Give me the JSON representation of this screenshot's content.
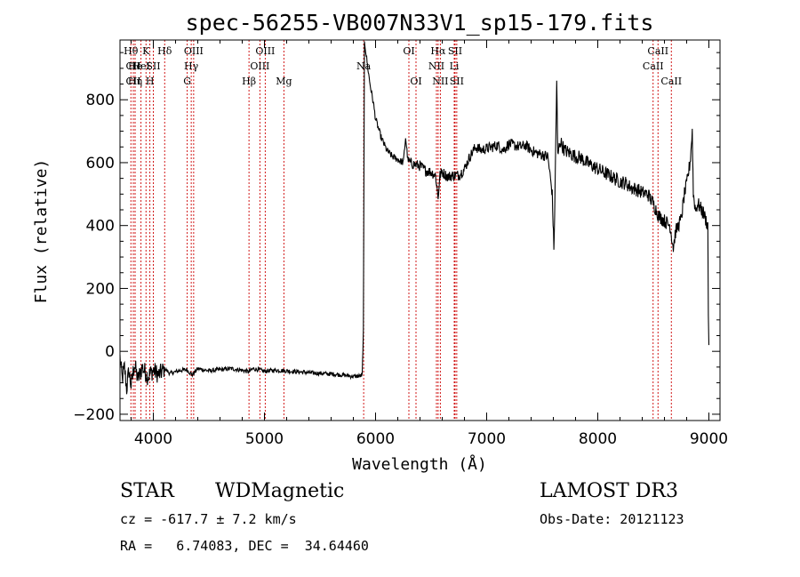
{
  "chart_data": {
    "type": "line",
    "title": "spec-56255-VB007N33V1_sp15-179.fits",
    "xlabel": "Wavelength (Å)",
    "ylabel": "Flux (relative)",
    "xlim": [
      3700,
      9100
    ],
    "ylim": [
      -220,
      990
    ],
    "xticks": [
      4000,
      5000,
      6000,
      7000,
      8000,
      9000
    ],
    "yticks": [
      -200,
      0,
      200,
      400,
      600,
      800
    ],
    "spectrum_anchors": [
      [
        3700,
        -20
      ],
      [
        3720,
        -90
      ],
      [
        3740,
        -50
      ],
      [
        3760,
        -120
      ],
      [
        3780,
        -60
      ],
      [
        3800,
        -110
      ],
      [
        3830,
        -40
      ],
      [
        3860,
        -90
      ],
      [
        3900,
        -50
      ],
      [
        3950,
        -80
      ],
      [
        4000,
        -60
      ],
      [
        4050,
        -75
      ],
      [
        4100,
        -55
      ],
      [
        4150,
        -70
      ],
      [
        4200,
        -65
      ],
      [
        4250,
        -60
      ],
      [
        4300,
        -58
      ],
      [
        4350,
        -75
      ],
      [
        4400,
        -55
      ],
      [
        4500,
        -62
      ],
      [
        4600,
        -58
      ],
      [
        4700,
        -55
      ],
      [
        4800,
        -60
      ],
      [
        4860,
        -65
      ],
      [
        4900,
        -55
      ],
      [
        5000,
        -63
      ],
      [
        5100,
        -60
      ],
      [
        5200,
        -62
      ],
      [
        5300,
        -65
      ],
      [
        5400,
        -68
      ],
      [
        5500,
        -70
      ],
      [
        5600,
        -72
      ],
      [
        5700,
        -75
      ],
      [
        5800,
        -80
      ],
      [
        5880,
        -78
      ],
      [
        5890,
        60
      ],
      [
        5900,
        990
      ],
      [
        5920,
        930
      ],
      [
        5950,
        850
      ],
      [
        5980,
        790
      ],
      [
        6000,
        740
      ],
      [
        6050,
        680
      ],
      [
        6100,
        640
      ],
      [
        6150,
        620
      ],
      [
        6200,
        610
      ],
      [
        6250,
        600
      ],
      [
        6270,
        680
      ],
      [
        6290,
        610
      ],
      [
        6310,
        600
      ],
      [
        6340,
        595
      ],
      [
        6400,
        590
      ],
      [
        6450,
        575
      ],
      [
        6500,
        570
      ],
      [
        6540,
        560
      ],
      [
        6563,
        490
      ],
      [
        6580,
        560
      ],
      [
        6600,
        570
      ],
      [
        6650,
        555
      ],
      [
        6700,
        560
      ],
      [
        6750,
        560
      ],
      [
        6800,
        580
      ],
      [
        6850,
        620
      ],
      [
        6900,
        650
      ],
      [
        6950,
        640
      ],
      [
        7000,
        645
      ],
      [
        7050,
        650
      ],
      [
        7100,
        655
      ],
      [
        7150,
        640
      ],
      [
        7200,
        660
      ],
      [
        7250,
        655
      ],
      [
        7300,
        650
      ],
      [
        7350,
        655
      ],
      [
        7400,
        640
      ],
      [
        7450,
        630
      ],
      [
        7500,
        625
      ],
      [
        7550,
        620
      ],
      [
        7590,
        500
      ],
      [
        7605,
        320
      ],
      [
        7615,
        500
      ],
      [
        7630,
        860
      ],
      [
        7640,
        620
      ],
      [
        7660,
        670
      ],
      [
        7700,
        640
      ],
      [
        7750,
        630
      ],
      [
        7800,
        620
      ],
      [
        7850,
        615
      ],
      [
        7900,
        600
      ],
      [
        7950,
        590
      ],
      [
        8000,
        580
      ],
      [
        8050,
        570
      ],
      [
        8100,
        560
      ],
      [
        8150,
        550
      ],
      [
        8200,
        540
      ],
      [
        8250,
        535
      ],
      [
        8300,
        520
      ],
      [
        8350,
        515
      ],
      [
        8400,
        505
      ],
      [
        8450,
        500
      ],
      [
        8500,
        470
      ],
      [
        8550,
        430
      ],
      [
        8600,
        415
      ],
      [
        8650,
        400
      ],
      [
        8680,
        330
      ],
      [
        8700,
        380
      ],
      [
        8750,
        420
      ],
      [
        8780,
        500
      ],
      [
        8800,
        530
      ],
      [
        8830,
        600
      ],
      [
        8850,
        700
      ],
      [
        8860,
        500
      ],
      [
        8880,
        450
      ],
      [
        8900,
        470
      ],
      [
        8950,
        440
      ],
      [
        8990,
        400
      ],
      [
        8995,
        120
      ],
      [
        9000,
        20
      ]
    ],
    "lines": [
      {
        "label": "Hθ",
        "x": 3798,
        "row": 1
      },
      {
        "label": "CII",
        "x": 3820,
        "row": 2
      },
      {
        "label": "CII",
        "x": 3820,
        "row": 3
      },
      {
        "label": "He",
        "x": 3836,
        "row": 2
      },
      {
        "label": "Hη",
        "x": 3836,
        "row": 3
      },
      {
        "label": "K",
        "x": 3934,
        "row": 1
      },
      {
        "label": "HeI",
        "x": 3889,
        "row": 2
      },
      {
        "label": "H",
        "x": 3969,
        "row": 3
      },
      {
        "label": "SII",
        "x": 4000,
        "row": 2
      },
      {
        "label": "Hδ",
        "x": 4102,
        "row": 1
      },
      {
        "label": "OIII",
        "x": 4363,
        "row": 1
      },
      {
        "label": "Hγ",
        "x": 4341,
        "row": 2
      },
      {
        "label": "G",
        "x": 4305,
        "row": 3
      },
      {
        "label": "Hβ",
        "x": 4861,
        "row": 3
      },
      {
        "label": "OIII",
        "x": 5007,
        "row": 1
      },
      {
        "label": "OIII",
        "x": 4959,
        "row": 2
      },
      {
        "label": "Mg",
        "x": 5175,
        "row": 3
      },
      {
        "label": "Na",
        "x": 5893,
        "row": 2
      },
      {
        "label": "OI",
        "x": 6300,
        "row": 1
      },
      {
        "label": "OI",
        "x": 6364,
        "row": 3
      },
      {
        "label": "Hα",
        "x": 6563,
        "row": 1
      },
      {
        "label": "SII",
        "x": 6716,
        "row": 1
      },
      {
        "label": "NII",
        "x": 6548,
        "row": 2
      },
      {
        "label": "Li",
        "x": 6708,
        "row": 2
      },
      {
        "label": "NII",
        "x": 6583,
        "row": 3
      },
      {
        "label": "SII",
        "x": 6731,
        "row": 3
      },
      {
        "label": "CaII",
        "x": 8542,
        "row": 1
      },
      {
        "label": "CaII",
        "x": 8498,
        "row": 2
      },
      {
        "label": "CaII",
        "x": 8662,
        "row": 3
      }
    ]
  },
  "footer": {
    "class_label": "STAR",
    "subclass": "WDMagnetic",
    "survey": "LAMOST DR3",
    "cz": "cz = -617.7 ± 7.2 km/s",
    "obs_date": "Obs-Date: 20121123",
    "radec": "RA =   6.74083, DEC =  34.64460"
  },
  "colors": {
    "spectrum": "#000000",
    "line_marker": "#cc0000"
  }
}
